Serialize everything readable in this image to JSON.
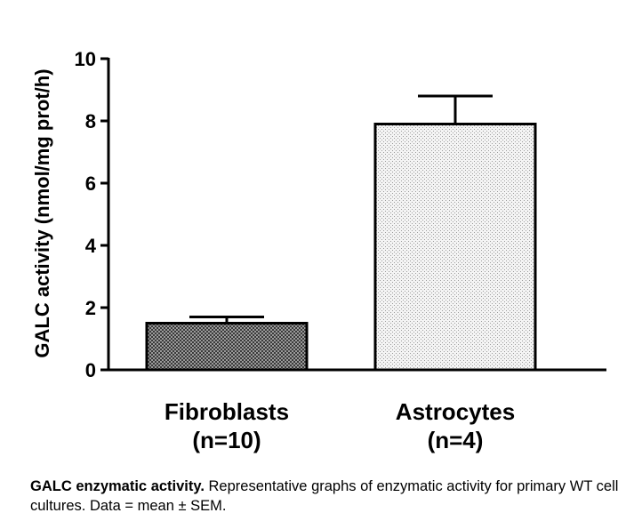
{
  "chart_data": {
    "type": "bar",
    "categories": [
      "Fibroblasts",
      "Astrocytes"
    ],
    "category_sublabels": [
      "(n=10)",
      "(n=4)"
    ],
    "values": [
      1.5,
      7.9
    ],
    "errors": [
      0.2,
      0.9
    ],
    "error_type": "SEM",
    "ylabel": "GALC activity (nmol/mg prot/h)",
    "xlabel": "",
    "ylim": [
      0,
      10
    ],
    "yticks": [
      0,
      2,
      4,
      6,
      8,
      10
    ],
    "bar_patterns": [
      "crosshatch-dark",
      "stipple-light"
    ],
    "grid": false,
    "legend": "none"
  },
  "caption": {
    "bold": "GALC enzymatic activity.",
    "text": " Representative graphs of enzymatic activity for primary WT cell cultures. Data = mean ± SEM."
  }
}
